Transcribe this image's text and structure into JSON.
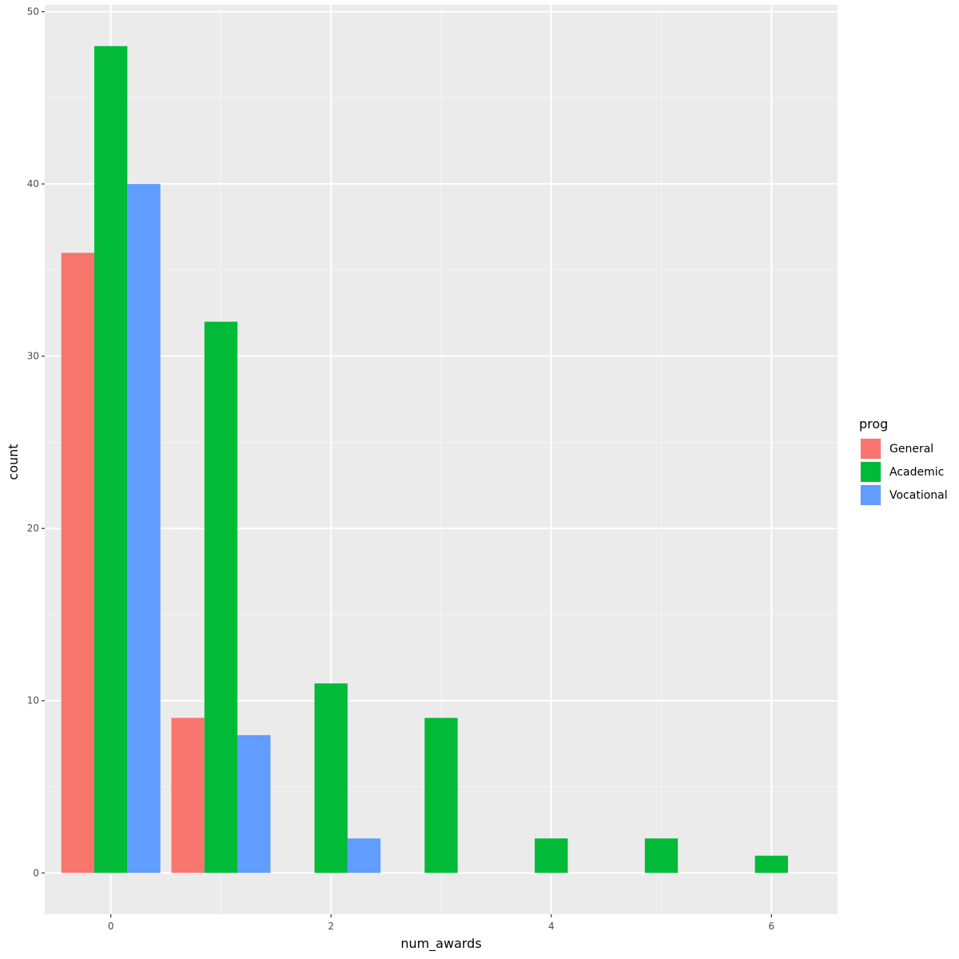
{
  "chart_data": {
    "type": "bar",
    "title": "",
    "xlabel": "num_awards",
    "ylabel": "count",
    "x": [
      0,
      1,
      2,
      3,
      4,
      5,
      6
    ],
    "xlim": [
      -0.6,
      6.6
    ],
    "ylim": [
      -2.4,
      50.4
    ],
    "x_ticks": [
      0,
      2,
      4,
      6
    ],
    "x_tick_labels": [
      "0",
      "2",
      "4",
      "6"
    ],
    "y_ticks": [
      0,
      10,
      20,
      30,
      40,
      50
    ],
    "y_tick_labels": [
      "0",
      "10",
      "20",
      "30",
      "40",
      "50"
    ],
    "grid": true,
    "legend_title": "prog",
    "legend_position": "right",
    "series": [
      {
        "name": "General",
        "color": "#F8766D",
        "values": [
          36,
          9,
          0,
          0,
          0,
          0,
          0
        ]
      },
      {
        "name": "Academic",
        "color": "#00BA38",
        "values": [
          48,
          32,
          11,
          9,
          2,
          2,
          1
        ]
      },
      {
        "name": "Vocational",
        "color": "#619CFF",
        "values": [
          40,
          8,
          2,
          0,
          0,
          0,
          0
        ]
      }
    ]
  }
}
